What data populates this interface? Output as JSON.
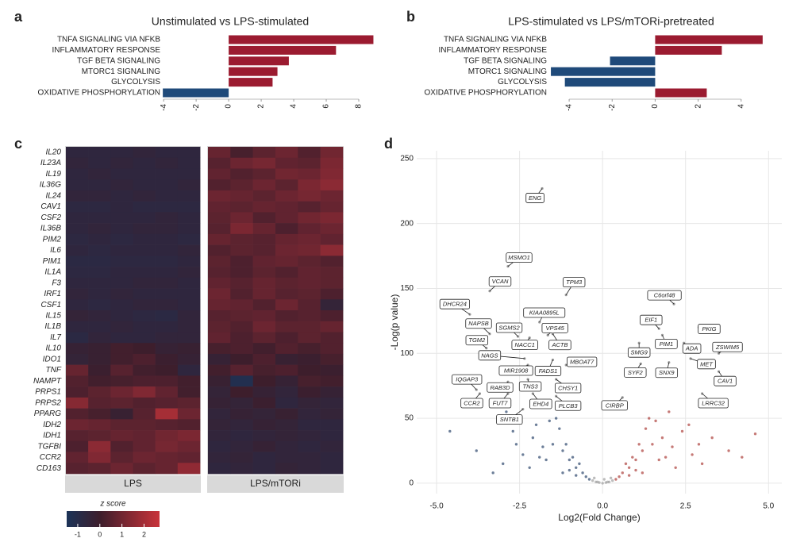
{
  "chart_data": [
    {
      "type": "barh",
      "panel_label": "a",
      "title": "Unstimulated vs LPS-stimulated",
      "categories": [
        "TNFA SIGNALING VIA NFKB",
        "INFLAMMATORY RESPONSE",
        "TGF BETA SIGNALING",
        "MTORC1 SIGNALING",
        "GLYCOLYSIS",
        "OXIDATIVE PHOSPHORYLATION"
      ],
      "values": [
        8.9,
        6.6,
        3.7,
        3.0,
        2.7,
        -4.05
      ],
      "colors": {
        "positive": "#9b1b30",
        "negative": "#1f4a7a"
      },
      "xlim": [
        -4.3,
        9
      ],
      "xticks": [
        -4,
        -2,
        0,
        2,
        4,
        6,
        8
      ]
    },
    {
      "type": "barh",
      "panel_label": "b",
      "title": "LPS-stimulated vs LPS/mTORi-pretreated",
      "categories": [
        "TNFA SIGNALING VIA NFKB",
        "INFLAMMATORY RESPONSE",
        "TGF BETA SIGNALING",
        "MTORC1 SIGNALING",
        "GLYCOLYSIS",
        "OXIDATIVE PHOSPHORYLATION"
      ],
      "values": [
        5.0,
        3.1,
        -2.1,
        -4.85,
        -4.2,
        2.4
      ],
      "colors": {
        "positive": "#9b1b30",
        "negative": "#1f4a7a"
      },
      "xlim": [
        -5,
        5.3
      ],
      "xticks": [
        -4,
        -2,
        0,
        2,
        4
      ]
    },
    {
      "type": "heatmap",
      "panel_label": "c",
      "rows": [
        "IL20",
        "IL23A",
        "IL19",
        "IL36G",
        "IL24",
        "CAV1",
        "CSF2",
        "IL36B",
        "PIM2",
        "IL6",
        "PIM1",
        "IL1A",
        "F3",
        "IRF1",
        "CSF1",
        "IL15",
        "IL1B",
        "IL7",
        "IL10",
        "IDO1",
        "TNF",
        "NAMPT",
        "PRPS1",
        "PRPS2",
        "PPARG",
        "IDH2",
        "IDH1",
        "TGFBI",
        "CCR2",
        "CD163"
      ],
      "row_label_colors": [
        "#333",
        "#333",
        "#333",
        "#333",
        "#333",
        "#333",
        "#333",
        "#333",
        "#333",
        "#333",
        "#333",
        "#333",
        "#333",
        "#333",
        "#333",
        "#333",
        "#333",
        "#333",
        "#999",
        "#999",
        "#999",
        "#999",
        "#333",
        "#333",
        "#333",
        "#333",
        "#333",
        "#333",
        "#333",
        "#333"
      ],
      "groups": [
        {
          "name": "LPS",
          "values": [
            [
              -0.6,
              -0.6,
              -0.6,
              -0.5,
              -0.6,
              -0.6
            ],
            [
              -0.5,
              -0.6,
              -0.5,
              -0.6,
              -0.5,
              -0.6
            ],
            [
              -0.6,
              -0.5,
              -0.6,
              -0.6,
              -0.6,
              -0.6
            ],
            [
              -0.6,
              -0.6,
              -0.5,
              -0.6,
              -0.6,
              -0.5
            ],
            [
              -0.5,
              -0.5,
              -0.6,
              -0.5,
              -0.6,
              -0.6
            ],
            [
              -0.7,
              -0.7,
              -0.6,
              -0.7,
              -0.7,
              -0.7
            ],
            [
              -0.6,
              -0.6,
              -0.6,
              -0.6,
              -0.5,
              -0.6
            ],
            [
              -0.6,
              -0.5,
              -0.6,
              -0.5,
              -0.5,
              -0.6
            ],
            [
              -0.7,
              -0.6,
              -0.7,
              -0.6,
              -0.6,
              -0.7
            ],
            [
              -0.6,
              -0.7,
              -0.6,
              -0.6,
              -0.6,
              -0.5
            ],
            [
              -0.8,
              -0.8,
              -0.7,
              -0.7,
              -0.7,
              -0.6
            ],
            [
              -0.7,
              -0.7,
              -0.6,
              -0.6,
              -0.6,
              -0.5
            ],
            [
              -0.6,
              -0.6,
              -0.6,
              -0.5,
              -0.5,
              -0.6
            ],
            [
              -0.5,
              -0.6,
              -0.5,
              -0.6,
              -0.6,
              -0.6
            ],
            [
              -0.6,
              -0.7,
              -0.6,
              -0.5,
              -0.5,
              -0.6
            ],
            [
              -0.4,
              -0.5,
              -0.6,
              -0.7,
              -0.8,
              -0.5
            ],
            [
              -0.6,
              -0.6,
              -0.5,
              -0.6,
              -0.6,
              -0.5
            ],
            [
              -0.8,
              -0.5,
              -0.6,
              -0.6,
              -0.5,
              -0.5
            ],
            [
              -0.3,
              -0.2,
              0.1,
              0.0,
              -0.3,
              -0.2
            ],
            [
              -0.4,
              -0.2,
              0.1,
              0.3,
              -0.1,
              -0.3
            ],
            [
              0.8,
              -0.1,
              0.5,
              0.1,
              0.0,
              -0.6
            ],
            [
              0.4,
              0.1,
              0.2,
              0.3,
              0.3,
              0.1
            ],
            [
              0.3,
              0.6,
              0.9,
              1.3,
              0.7,
              0.1
            ],
            [
              1.4,
              0.5,
              0.6,
              0.4,
              0.5,
              0.6
            ],
            [
              0.4,
              0.2,
              -0.2,
              0.5,
              2.0,
              0.9
            ],
            [
              0.9,
              0.8,
              0.6,
              0.6,
              0.5,
              0.4
            ],
            [
              0.5,
              0.6,
              0.8,
              0.7,
              1.0,
              1.2
            ],
            [
              0.3,
              1.5,
              0.4,
              0.7,
              1.1,
              0.9
            ],
            [
              0.7,
              1.3,
              0.6,
              0.9,
              0.8,
              0.7
            ],
            [
              0.5,
              0.6,
              0.9,
              0.6,
              0.8,
              1.6
            ]
          ]
        },
        {
          "name": "LPS/mTORi",
          "values": [
            [
              0.8,
              0.2,
              0.6,
              0.9,
              0.4,
              1.0
            ],
            [
              0.5,
              0.9,
              1.1,
              0.7,
              0.6,
              1.2
            ],
            [
              0.7,
              0.4,
              0.6,
              1.0,
              0.9,
              1.3
            ],
            [
              0.4,
              0.6,
              0.9,
              0.6,
              1.2,
              1.5
            ],
            [
              0.9,
              0.8,
              0.6,
              0.9,
              1.1,
              0.9
            ],
            [
              0.7,
              0.6,
              0.8,
              0.7,
              0.5,
              0.8
            ],
            [
              0.6,
              0.9,
              0.4,
              0.7,
              1.0,
              1.2
            ],
            [
              0.5,
              1.2,
              0.8,
              0.3,
              0.7,
              0.9
            ],
            [
              0.8,
              0.6,
              0.5,
              0.8,
              0.9,
              0.7
            ],
            [
              0.4,
              0.6,
              0.5,
              0.9,
              1.0,
              1.5
            ],
            [
              0.6,
              0.3,
              0.7,
              0.8,
              0.6,
              0.4
            ],
            [
              0.5,
              0.3,
              0.6,
              0.4,
              0.7,
              0.6
            ],
            [
              0.7,
              0.5,
              0.8,
              0.6,
              0.7,
              0.6
            ],
            [
              0.9,
              0.4,
              0.8,
              0.5,
              0.6,
              0.3
            ],
            [
              0.8,
              0.7,
              0.4,
              0.9,
              0.5,
              -0.4
            ],
            [
              0.5,
              0.6,
              0.7,
              0.4,
              0.5,
              0.3
            ],
            [
              0.6,
              0.4,
              0.9,
              0.6,
              0.6,
              0.8
            ],
            [
              0.7,
              0.3,
              0.6,
              0.3,
              0.6,
              0.4
            ],
            [
              0.2,
              0.3,
              0.1,
              0.4,
              0.2,
              0.4
            ],
            [
              -0.3,
              0.0,
              0.3,
              -0.2,
              -0.1,
              0.2
            ],
            [
              0.1,
              0.5,
              0.2,
              0.3,
              0.0,
              -0.1
            ],
            [
              -0.2,
              -1.2,
              0.0,
              -0.3,
              0.2,
              0.1
            ],
            [
              -0.4,
              0.0,
              -0.3,
              -0.5,
              -0.1,
              -0.3
            ],
            [
              -0.3,
              -0.4,
              -0.1,
              -0.6,
              -0.4,
              -0.5
            ],
            [
              -0.5,
              -0.3,
              -0.4,
              -0.2,
              -0.5,
              -0.4
            ],
            [
              -0.4,
              -0.5,
              -0.3,
              -0.4,
              -0.6,
              -0.6
            ],
            [
              -0.5,
              -0.6,
              -0.5,
              -0.4,
              -0.5,
              -0.6
            ],
            [
              -0.6,
              -0.5,
              -0.3,
              -0.5,
              -0.6,
              -0.5
            ],
            [
              -0.5,
              -0.4,
              -0.6,
              -0.5,
              -0.5,
              -0.6
            ],
            [
              -0.6,
              -0.5,
              -0.6,
              -0.4,
              -0.5,
              -0.6
            ]
          ]
        }
      ],
      "colorbar": {
        "title": "z score",
        "zlim": [
          -1.5,
          2.7
        ],
        "ticks": [
          -1,
          0,
          1,
          2
        ],
        "colors": [
          "#1b3358",
          "#3d1e2c",
          "#c9333a"
        ]
      }
    },
    {
      "type": "scatter",
      "panel_label": "d",
      "xlabel": "Log2(Fold Change)",
      "ylabel": "-Log(p value)",
      "xlim": [
        -5.6,
        5.4
      ],
      "ylim": [
        -8,
        256
      ],
      "xticks": [
        {
          "value": -5,
          "label": "-5.0"
        },
        {
          "value": -2.5,
          "label": "-2.5"
        },
        {
          "value": 0,
          "label": "0.0"
        },
        {
          "value": 2.5,
          "label": "2.5"
        },
        {
          "value": 5,
          "label": "5.0"
        }
      ],
      "yticks": [
        0,
        50,
        100,
        150,
        200,
        250
      ],
      "grid": true,
      "series": [
        {
          "color": "#1f3a63",
          "x": [
            -0.4,
            -0.6,
            -0.8,
            -1.0,
            -1.2,
            -1.5,
            -1.8,
            -2.1,
            -2.4,
            -2.7,
            -3.0,
            -0.5,
            -0.7,
            -0.9,
            -1.1,
            -1.3,
            -1.6,
            -1.9,
            -2.2,
            -2.6,
            -3.3,
            -3.8,
            -4.6,
            -1.0,
            -1.4,
            -2.0,
            -0.8,
            -1.2,
            -1.7,
            -2.9
          ],
          "y": [
            3,
            8,
            12,
            18,
            25,
            30,
            28,
            35,
            22,
            40,
            15,
            5,
            15,
            20,
            30,
            42,
            48,
            20,
            12,
            30,
            8,
            25,
            40,
            10,
            50,
            45,
            6,
            8,
            18,
            55
          ]
        },
        {
          "color": "#a8322e",
          "x": [
            0.4,
            0.6,
            0.8,
            1.0,
            1.2,
            1.5,
            1.8,
            2.1,
            2.4,
            2.7,
            3.0,
            0.5,
            0.7,
            0.9,
            1.1,
            1.3,
            1.6,
            1.9,
            2.2,
            2.6,
            3.3,
            3.8,
            4.6,
            1.0,
            1.4,
            2.0,
            0.8,
            1.2,
            1.7,
            2.9,
            3.5,
            4.2
          ],
          "y": [
            3,
            8,
            12,
            18,
            25,
            30,
            35,
            28,
            40,
            22,
            15,
            5,
            15,
            20,
            30,
            42,
            48,
            20,
            12,
            45,
            35,
            25,
            38,
            10,
            50,
            55,
            6,
            8,
            18,
            30,
            60,
            20
          ]
        },
        {
          "color": "#9a9a9a",
          "x": [
            -0.3,
            -0.2,
            -0.1,
            0,
            0.1,
            0.2,
            0.3,
            -0.25,
            0.25,
            -0.15,
            0.15,
            0.05
          ],
          "y": [
            2,
            1,
            0.5,
            0,
            0.5,
            1,
            2,
            4,
            4,
            1,
            1,
            3
          ]
        }
      ],
      "annotation_color": "#9a9a9a",
      "annotations": [
        {
          "text": "ENG",
          "x": -1.82,
          "y": 227
        },
        {
          "text": "MSMO1",
          "x": -2.85,
          "y": 167
        },
        {
          "text": "VCAN",
          "x": -3.4,
          "y": 148
        },
        {
          "text": "TPM3",
          "x": -1.1,
          "y": 145
        },
        {
          "text": "DHCR24",
          "x": -4.0,
          "y": 130
        },
        {
          "text": "C6orf48",
          "x": 2.15,
          "y": 138
        },
        {
          "text": "KIAA0895L",
          "x": -1.9,
          "y": 124
        },
        {
          "text": "EIF1",
          "x": 1.7,
          "y": 119
        },
        {
          "text": "NAPSB",
          "x": -3.4,
          "y": 115
        },
        {
          "text": "SGMS2",
          "x": -2.55,
          "y": 113
        },
        {
          "text": "VPS45",
          "x": -1.65,
          "y": 114
        },
        {
          "text": "PKIG",
          "x": 2.9,
          "y": 120
        },
        {
          "text": "TGM2",
          "x": -3.5,
          "y": 104
        },
        {
          "text": "NACC1",
          "x": -2.2,
          "y": 112
        },
        {
          "text": "ACTB",
          "x": -1.5,
          "y": 115
        },
        {
          "text": "PIM1",
          "x": 1.8,
          "y": 114
        },
        {
          "text": "ZSWIM5",
          "x": 3.5,
          "y": 100
        },
        {
          "text": "ADA",
          "x": 2.45,
          "y": 108
        },
        {
          "text": "SMG9",
          "x": 1.1,
          "y": 108
        },
        {
          "text": "NAGS",
          "x": -2.35,
          "y": 96
        },
        {
          "text": "MBOAT7",
          "x": -1.1,
          "y": 91
        },
        {
          "text": "MET",
          "x": 2.65,
          "y": 96
        },
        {
          "text": "MIR1908",
          "x": -2.25,
          "y": 91
        },
        {
          "text": "FADS1",
          "x": -1.5,
          "y": 95
        },
        {
          "text": "SYF2",
          "x": 1.15,
          "y": 92
        },
        {
          "text": "SNX9",
          "x": 2.0,
          "y": 93
        },
        {
          "text": "CAV1",
          "x": 3.5,
          "y": 86
        },
        {
          "text": "IQGAP3",
          "x": -3.8,
          "y": 72
        },
        {
          "text": "RAB3D",
          "x": -2.85,
          "y": 78
        },
        {
          "text": "TNS3",
          "x": -2.25,
          "y": 80
        },
        {
          "text": "CHSY1",
          "x": -1.4,
          "y": 80
        },
        {
          "text": "LRRC32",
          "x": 3.0,
          "y": 69
        },
        {
          "text": "CCR2",
          "x": -3.7,
          "y": 69
        },
        {
          "text": "FUT7",
          "x": -2.85,
          "y": 69
        },
        {
          "text": "EHD4",
          "x": -2.1,
          "y": 69
        },
        {
          "text": "PLCB3",
          "x": -1.4,
          "y": 67
        },
        {
          "text": "CIRBP",
          "x": 0.6,
          "y": 66
        },
        {
          "text": "SNTB1",
          "x": -2.4,
          "y": 57
        }
      ]
    }
  ]
}
